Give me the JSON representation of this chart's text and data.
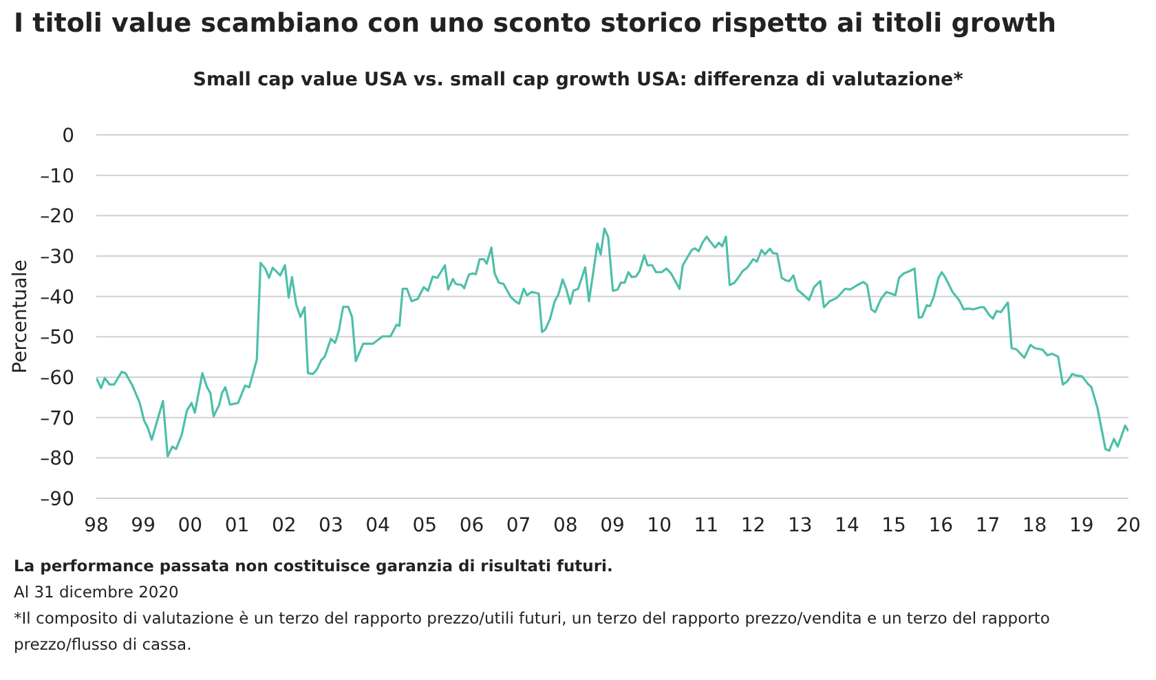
{
  "chart_data": {
    "type": "line",
    "title": "I titoli value scambiano con uno sconto storico rispetto ai titoli growth",
    "subtitle": "Small cap value USA vs. small cap growth USA: differenza di valutazione*",
    "ylabel": "Percentuale",
    "annotations": [
      "La performance passata non costituisce garanzia di risultati futuri.",
      "Al 31 dicembre 2020",
      "*Il composito di valutazione è un terzo del rapporto prezzo/utili futuri, un terzo del rapporto prezzo/vendita e un terzo del rapporto prezzo/flusso di cassa."
    ],
    "x": [
      1998.0,
      1998.1,
      1998.18,
      1998.28,
      1998.38,
      1998.54,
      1998.62,
      1998.77,
      1998.92,
      1999.02,
      1999.1,
      1999.18,
      1999.42,
      1999.52,
      1999.62,
      1999.7,
      1999.82,
      1999.93,
      2000.03,
      2000.1,
      2000.26,
      2000.36,
      2000.43,
      2000.5,
      2000.62,
      2000.68,
      2000.75,
      2000.85,
      2001.02,
      2001.17,
      2001.26,
      2001.42,
      2001.5,
      2001.6,
      2001.68,
      2001.76,
      2001.92,
      2002.02,
      2002.1,
      2002.17,
      2002.26,
      2002.35,
      2002.44,
      2002.51,
      2002.62,
      2002.7,
      2002.8,
      2002.87,
      2003.0,
      2003.09,
      2003.17,
      2003.26,
      2003.37,
      2003.45,
      2003.53,
      2003.69,
      2003.9,
      2004.1,
      2004.27,
      2004.4,
      2004.46,
      2004.53,
      2004.62,
      2004.72,
      2004.85,
      2004.98,
      2005.07,
      2005.17,
      2005.27,
      2005.43,
      2005.5,
      2005.6,
      2005.66,
      2005.79,
      2005.84,
      2005.94,
      2006.02,
      2006.09,
      2006.17,
      2006.26,
      2006.32,
      2006.42,
      2006.49,
      2006.58,
      2006.68,
      2006.83,
      2006.93,
      2007.01,
      2007.11,
      2007.18,
      2007.28,
      2007.43,
      2007.5,
      2007.57,
      2007.67,
      2007.77,
      2007.85,
      2007.94,
      2008.02,
      2008.1,
      2008.17,
      2008.27,
      2008.42,
      2008.5,
      2008.6,
      2008.68,
      2008.75,
      2008.83,
      2008.91,
      2009.01,
      2009.11,
      2009.18,
      2009.26,
      2009.34,
      2009.41,
      2009.5,
      2009.58,
      2009.68,
      2009.75,
      2009.85,
      2009.93,
      2010.05,
      2010.15,
      2010.25,
      2010.43,
      2010.5,
      2010.59,
      2010.69,
      2010.76,
      2010.84,
      2010.92,
      2011.01,
      2011.09,
      2011.19,
      2011.27,
      2011.34,
      2011.42,
      2011.5,
      2011.6,
      2011.68,
      2011.78,
      2011.88,
      2012.0,
      2012.08,
      2012.18,
      2012.25,
      2012.36,
      2012.42,
      2012.51,
      2012.61,
      2012.69,
      2012.77,
      2012.86,
      2012.94,
      2013.06,
      2013.19,
      2013.3,
      2013.43,
      2013.51,
      2013.63,
      2013.78,
      2013.96,
      2014.07,
      2014.22,
      2014.35,
      2014.43,
      2014.52,
      2014.6,
      2014.72,
      2014.84,
      2014.94,
      2015.03,
      2015.11,
      2015.21,
      2015.34,
      2015.44,
      2015.53,
      2015.6,
      2015.7,
      2015.77,
      2015.85,
      2015.95,
      2016.02,
      2016.1,
      2016.25,
      2016.39,
      2016.49,
      2016.59,
      2016.69,
      2016.84,
      2016.92,
      2017.04,
      2017.11,
      2017.19,
      2017.28,
      2017.43,
      2017.51,
      2017.61,
      2017.78,
      2017.91,
      2018.0,
      2018.17,
      2018.27,
      2018.37,
      2018.5,
      2018.6,
      2018.7,
      2018.8,
      2018.89,
      2019.01,
      2019.13,
      2019.21,
      2019.34,
      2019.51,
      2019.59,
      2019.69,
      2019.77,
      2019.93,
      2020.0
    ],
    "series": [
      {
        "color": "#4dbfaa",
        "values": [
          -60.2,
          -62.7,
          -60.2,
          -61.8,
          -61.8,
          -58.7,
          -59.0,
          -62.1,
          -66.2,
          -70.8,
          -72.6,
          -75.5,
          -65.9,
          -79.6,
          -77.2,
          -77.8,
          -74.3,
          -68.3,
          -66.4,
          -68.8,
          -59.0,
          -62.5,
          -63.9,
          -69.7,
          -66.8,
          -63.9,
          -62.5,
          -66.8,
          -66.4,
          -62.1,
          -62.5,
          -55.7,
          -31.7,
          -33.1,
          -35.4,
          -32.9,
          -34.8,
          -32.3,
          -40.3,
          -35.2,
          -42.0,
          -45.1,
          -42.7,
          -59.0,
          -59.2,
          -58.1,
          -55.7,
          -54.9,
          -50.5,
          -51.5,
          -48.5,
          -42.6,
          -42.6,
          -45.1,
          -56.0,
          -51.7,
          -51.7,
          -49.9,
          -49.9,
          -47.0,
          -47.3,
          -38.1,
          -38.1,
          -41.2,
          -40.6,
          -37.7,
          -38.6,
          -35.1,
          -35.4,
          -32.3,
          -38.3,
          -35.7,
          -36.9,
          -37.2,
          -38.0,
          -34.6,
          -34.3,
          -34.5,
          -30.8,
          -30.8,
          -31.9,
          -27.9,
          -34.3,
          -36.6,
          -36.9,
          -40.1,
          -41.2,
          -41.8,
          -38.1,
          -39.7,
          -38.9,
          -39.3,
          -48.8,
          -48.2,
          -45.6,
          -41.2,
          -39.5,
          -35.8,
          -38.3,
          -41.8,
          -38.6,
          -38.1,
          -32.8,
          -41.2,
          -33.4,
          -26.9,
          -29.6,
          -23.2,
          -25.3,
          -38.6,
          -38.3,
          -36.6,
          -36.6,
          -34.0,
          -35.2,
          -35.1,
          -33.7,
          -29.8,
          -32.3,
          -32.3,
          -34.0,
          -34.0,
          -33.1,
          -34.3,
          -38.1,
          -32.3,
          -30.5,
          -28.5,
          -28.1,
          -28.8,
          -26.7,
          -25.2,
          -26.5,
          -27.9,
          -26.7,
          -27.6,
          -25.2,
          -37.2,
          -36.6,
          -35.4,
          -33.7,
          -32.8,
          -30.8,
          -31.4,
          -28.5,
          -29.6,
          -28.2,
          -29.3,
          -29.4,
          -35.4,
          -36.0,
          -36.2,
          -34.8,
          -38.3,
          -39.5,
          -40.9,
          -37.7,
          -36.2,
          -42.7,
          -41.2,
          -40.4,
          -38.1,
          -38.3,
          -37.2,
          -36.4,
          -37.2,
          -43.2,
          -43.9,
          -40.7,
          -38.9,
          -39.3,
          -39.7,
          -35.4,
          -34.3,
          -33.7,
          -33.1,
          -45.3,
          -45.1,
          -42.2,
          -42.4,
          -40.1,
          -35.4,
          -34.0,
          -35.4,
          -38.9,
          -40.9,
          -43.2,
          -43.0,
          -43.2,
          -42.7,
          -42.7,
          -44.7,
          -45.5,
          -43.6,
          -43.9,
          -41.5,
          -52.8,
          -53.1,
          -55.2,
          -52.0,
          -52.8,
          -53.2,
          -54.6,
          -54.2,
          -54.9,
          -61.8,
          -61.0,
          -59.2,
          -59.6,
          -59.8,
          -61.6,
          -62.5,
          -67.7,
          -77.8,
          -78.2,
          -75.3,
          -77.2,
          -72.0,
          -73.4
        ]
      }
    ],
    "xlim": [
      1998,
      2020
    ],
    "xticks": [
      {
        "value": 1998,
        "label": "98"
      },
      {
        "value": 1999,
        "label": "99"
      },
      {
        "value": 2000,
        "label": "00"
      },
      {
        "value": 2001,
        "label": "01"
      },
      {
        "value": 2002,
        "label": "02"
      },
      {
        "value": 2003,
        "label": "03"
      },
      {
        "value": 2004,
        "label": "04"
      },
      {
        "value": 2005,
        "label": "05"
      },
      {
        "value": 2006,
        "label": "06"
      },
      {
        "value": 2007,
        "label": "07"
      },
      {
        "value": 2008,
        "label": "08"
      },
      {
        "value": 2009,
        "label": "09"
      },
      {
        "value": 2010,
        "label": "10"
      },
      {
        "value": 2011,
        "label": "11"
      },
      {
        "value": 2012,
        "label": "12"
      },
      {
        "value": 2013,
        "label": "13"
      },
      {
        "value": 2014,
        "label": "14"
      },
      {
        "value": 2015,
        "label": "15"
      },
      {
        "value": 2016,
        "label": "16"
      },
      {
        "value": 2017,
        "label": "17"
      },
      {
        "value": 2018,
        "label": "18"
      },
      {
        "value": 2019,
        "label": "19"
      },
      {
        "value": 2020,
        "label": "20"
      }
    ],
    "ylim": [
      -90,
      0
    ],
    "yticks": [
      {
        "value": 0,
        "label": "0"
      },
      {
        "value": -10,
        "label": "–10"
      },
      {
        "value": -20,
        "label": "–20"
      },
      {
        "value": -30,
        "label": "–30"
      },
      {
        "value": -40,
        "label": "–40"
      },
      {
        "value": -50,
        "label": "–50"
      },
      {
        "value": -60,
        "label": "–60"
      },
      {
        "value": -70,
        "label": "–70"
      },
      {
        "value": -80,
        "label": "–80"
      },
      {
        "value": -90,
        "label": "–90"
      }
    ],
    "grid": "y",
    "legend": false,
    "marker": "none",
    "line_style": "solid"
  }
}
